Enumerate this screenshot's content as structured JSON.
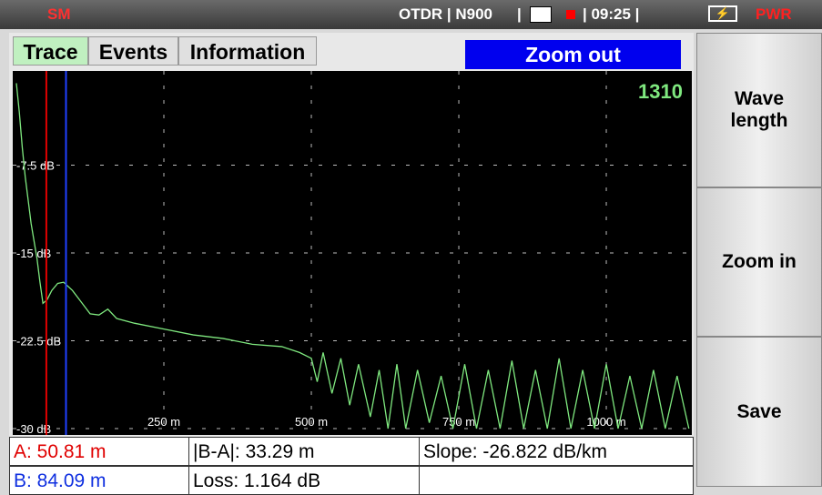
{
  "status_bar": {
    "mode": "SM",
    "device": "OTDR | N900",
    "separator": "|",
    "time": "| 09:25 |",
    "power": "PWR"
  },
  "tabs": [
    "Trace",
    "Events",
    "Information"
  ],
  "zoom_button": "Zoom out",
  "side_buttons": [
    "Wave length",
    "Zoom in",
    "Save"
  ],
  "table": {
    "rows": [
      [
        "A: 50.81 m",
        "|B-A|: 33.29 m",
        "Slope: -26.822 dB/km"
      ],
      [
        "B: 84.09 m",
        "Loss: 1.164 dB"
      ]
    ]
  },
  "chart_data": {
    "type": "line",
    "annotation": "1310",
    "xlim": [
      0,
      1145
    ],
    "ylim": [
      -30,
      0
    ],
    "xticks": [
      {
        "value": 250,
        "label": "250 m"
      },
      {
        "value": 500,
        "label": "500 m"
      },
      {
        "value": 750,
        "label": "750 m"
      },
      {
        "value": 1000,
        "label": "1000 m"
      }
    ],
    "yticks": [
      {
        "value": -7.5,
        "label": "-7.5 dB"
      },
      {
        "value": -15,
        "label": "-15 dB"
      },
      {
        "value": -22.5,
        "label": "-22.5 dB"
      },
      {
        "value": -30,
        "label": "-30 dB"
      }
    ],
    "grid": true,
    "cursors": [
      {
        "value": 50.81,
        "color": "#e00000"
      },
      {
        "value": 84.09,
        "color": "#2040ff"
      }
    ],
    "series": [
      {
        "color": "#7fe87f",
        "x": [
          0,
          5,
          10,
          15,
          20,
          25,
          30,
          35,
          40,
          45,
          52,
          60,
          70,
          80,
          95,
          110,
          125,
          140,
          155,
          170,
          200,
          250,
          300,
          350,
          400,
          450,
          480,
          500,
          510,
          520,
          535,
          550,
          565,
          580,
          600,
          615,
          630,
          645,
          660,
          680,
          700,
          720,
          740,
          760,
          780,
          800,
          820,
          840,
          860,
          880,
          900,
          920,
          940,
          960,
          980,
          1000,
          1020,
          1040,
          1060,
          1080,
          1100,
          1120,
          1140
        ],
        "values": [
          -0.5,
          -3,
          -6,
          -8.5,
          -10.5,
          -12.5,
          -14,
          -15.5,
          -17.5,
          -19.3,
          -19,
          -18.2,
          -17.6,
          -17.5,
          -18.2,
          -19.2,
          -20.2,
          -20.3,
          -19.8,
          -20.6,
          -21,
          -21.5,
          -22,
          -22.3,
          -22.8,
          -23,
          -23.5,
          -24,
          -26,
          -23.5,
          -27,
          -24,
          -28,
          -24.5,
          -29,
          -25,
          -30,
          -24.5,
          -30,
          -25,
          -29.5,
          -25.5,
          -30,
          -24.5,
          -30,
          -25,
          -30,
          -24.2,
          -30,
          -25,
          -30,
          -24,
          -30,
          -25,
          -30,
          -24.5,
          -30,
          -25.5,
          -30,
          -25,
          -30,
          -25.5,
          -30
        ]
      }
    ]
  }
}
